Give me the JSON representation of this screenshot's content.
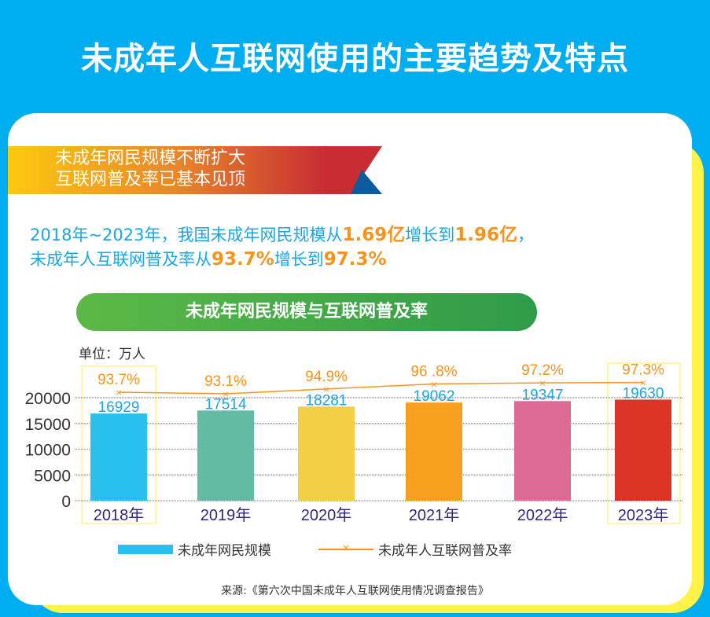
{
  "title": "未成年人互联网使用的主要趋势及特点",
  "ribbon": {
    "line1": "未成年网民规模不断扩大",
    "line2": "互联网普及率已基本见顶"
  },
  "summary": {
    "p1": "2018年~2023年，我国未成年网民规模从",
    "v1": "1.69亿",
    "p2": "增长到",
    "v2": "1.96亿",
    "p3": "，",
    "p4": "未成年人互联网普及率从",
    "v3": "93.7%",
    "p5": "增长到",
    "v4": "97.3%"
  },
  "chart_title": "未成年网民规模与互联网普及率",
  "unit": "单位：万人",
  "source": "来源:《第六次中国未成年人互联网使用情况调查报告》",
  "chart_data": {
    "type": "bar",
    "title": "未成年网民规模与互联网普及率",
    "categories": [
      "2018年",
      "2019年",
      "2020年",
      "2021年",
      "2022年",
      "2023年"
    ],
    "series": [
      {
        "name": "未成年网民规模",
        "type": "bar",
        "values": [
          16929,
          17514,
          18281,
          19062,
          19347,
          19630
        ],
        "labels": [
          "16929",
          "17514",
          "18281",
          "19062",
          "19347",
          "19630"
        ]
      },
      {
        "name": "未成年人互联网普及率",
        "type": "line",
        "values": [
          93.7,
          93.1,
          94.9,
          96.8,
          97.2,
          97.3
        ],
        "labels": [
          "93.7%",
          "93.1%",
          "94.9%",
          "96 .8%",
          "97.2%",
          "97.3%"
        ]
      }
    ],
    "bar_colors": [
      "#29bfef",
      "#62bba2",
      "#f3cf45",
      "#f79f1f",
      "#db6d95",
      "#dc3327"
    ],
    "line_color": "#f7941d",
    "yticks": [
      "0",
      "5000",
      "10000",
      "15000",
      "20000"
    ],
    "ylim": [
      0,
      20000
    ],
    "ylabel": "单位：万人",
    "grid": true,
    "legend": "bottom"
  }
}
